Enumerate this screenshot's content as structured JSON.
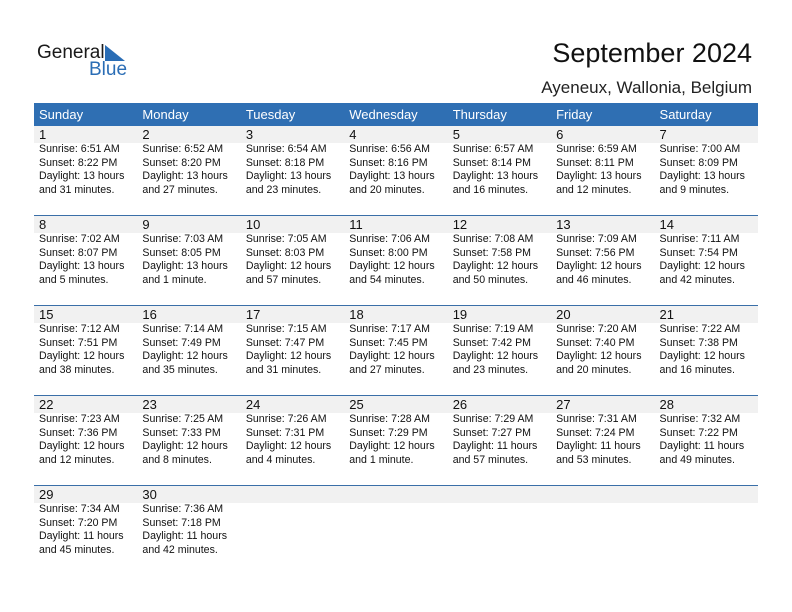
{
  "logo": {
    "line1": "General",
    "line2": "Blue"
  },
  "title": "September 2024",
  "location": "Ayeneux, Wallonia, Belgium",
  "weekdays": [
    "Sunday",
    "Monday",
    "Tuesday",
    "Wednesday",
    "Thursday",
    "Friday",
    "Saturday"
  ],
  "colors": {
    "header": "#2f6fb3",
    "band": "#f1f1f1",
    "brand_blue": "#2a6db5"
  },
  "weeks": [
    [
      [
        "1",
        "Sunrise: 6:51 AM",
        "Sunset: 8:22 PM",
        "Daylight: 13 hours",
        "and 31 minutes."
      ],
      [
        "2",
        "Sunrise: 6:52 AM",
        "Sunset: 8:20 PM",
        "Daylight: 13 hours",
        "and 27 minutes."
      ],
      [
        "3",
        "Sunrise: 6:54 AM",
        "Sunset: 8:18 PM",
        "Daylight: 13 hours",
        "and 23 minutes."
      ],
      [
        "4",
        "Sunrise: 6:56 AM",
        "Sunset: 8:16 PM",
        "Daylight: 13 hours",
        "and 20 minutes."
      ],
      [
        "5",
        "Sunrise: 6:57 AM",
        "Sunset: 8:14 PM",
        "Daylight: 13 hours",
        "and 16 minutes."
      ],
      [
        "6",
        "Sunrise: 6:59 AM",
        "Sunset: 8:11 PM",
        "Daylight: 13 hours",
        "and 12 minutes."
      ],
      [
        "7",
        "Sunrise: 7:00 AM",
        "Sunset: 8:09 PM",
        "Daylight: 13 hours",
        "and 9 minutes."
      ]
    ],
    [
      [
        "8",
        "Sunrise: 7:02 AM",
        "Sunset: 8:07 PM",
        "Daylight: 13 hours",
        "and 5 minutes."
      ],
      [
        "9",
        "Sunrise: 7:03 AM",
        "Sunset: 8:05 PM",
        "Daylight: 13 hours",
        "and 1 minute."
      ],
      [
        "10",
        "Sunrise: 7:05 AM",
        "Sunset: 8:03 PM",
        "Daylight: 12 hours",
        "and 57 minutes."
      ],
      [
        "11",
        "Sunrise: 7:06 AM",
        "Sunset: 8:00 PM",
        "Daylight: 12 hours",
        "and 54 minutes."
      ],
      [
        "12",
        "Sunrise: 7:08 AM",
        "Sunset: 7:58 PM",
        "Daylight: 12 hours",
        "and 50 minutes."
      ],
      [
        "13",
        "Sunrise: 7:09 AM",
        "Sunset: 7:56 PM",
        "Daylight: 12 hours",
        "and 46 minutes."
      ],
      [
        "14",
        "Sunrise: 7:11 AM",
        "Sunset: 7:54 PM",
        "Daylight: 12 hours",
        "and 42 minutes."
      ]
    ],
    [
      [
        "15",
        "Sunrise: 7:12 AM",
        "Sunset: 7:51 PM",
        "Daylight: 12 hours",
        "and 38 minutes."
      ],
      [
        "16",
        "Sunrise: 7:14 AM",
        "Sunset: 7:49 PM",
        "Daylight: 12 hours",
        "and 35 minutes."
      ],
      [
        "17",
        "Sunrise: 7:15 AM",
        "Sunset: 7:47 PM",
        "Daylight: 12 hours",
        "and 31 minutes."
      ],
      [
        "18",
        "Sunrise: 7:17 AM",
        "Sunset: 7:45 PM",
        "Daylight: 12 hours",
        "and 27 minutes."
      ],
      [
        "19",
        "Sunrise: 7:19 AM",
        "Sunset: 7:42 PM",
        "Daylight: 12 hours",
        "and 23 minutes."
      ],
      [
        "20",
        "Sunrise: 7:20 AM",
        "Sunset: 7:40 PM",
        "Daylight: 12 hours",
        "and 20 minutes."
      ],
      [
        "21",
        "Sunrise: 7:22 AM",
        "Sunset: 7:38 PM",
        "Daylight: 12 hours",
        "and 16 minutes."
      ]
    ],
    [
      [
        "22",
        "Sunrise: 7:23 AM",
        "Sunset: 7:36 PM",
        "Daylight: 12 hours",
        "and 12 minutes."
      ],
      [
        "23",
        "Sunrise: 7:25 AM",
        "Sunset: 7:33 PM",
        "Daylight: 12 hours",
        "and 8 minutes."
      ],
      [
        "24",
        "Sunrise: 7:26 AM",
        "Sunset: 7:31 PM",
        "Daylight: 12 hours",
        "and 4 minutes."
      ],
      [
        "25",
        "Sunrise: 7:28 AM",
        "Sunset: 7:29 PM",
        "Daylight: 12 hours",
        "and 1 minute."
      ],
      [
        "26",
        "Sunrise: 7:29 AM",
        "Sunset: 7:27 PM",
        "Daylight: 11 hours",
        "and 57 minutes."
      ],
      [
        "27",
        "Sunrise: 7:31 AM",
        "Sunset: 7:24 PM",
        "Daylight: 11 hours",
        "and 53 minutes."
      ],
      [
        "28",
        "Sunrise: 7:32 AM",
        "Sunset: 7:22 PM",
        "Daylight: 11 hours",
        "and 49 minutes."
      ]
    ],
    [
      [
        "29",
        "Sunrise: 7:34 AM",
        "Sunset: 7:20 PM",
        "Daylight: 11 hours",
        "and 45 minutes."
      ],
      [
        "30",
        "Sunrise: 7:36 AM",
        "Sunset: 7:18 PM",
        "Daylight: 11 hours",
        "and 42 minutes."
      ]
    ]
  ]
}
